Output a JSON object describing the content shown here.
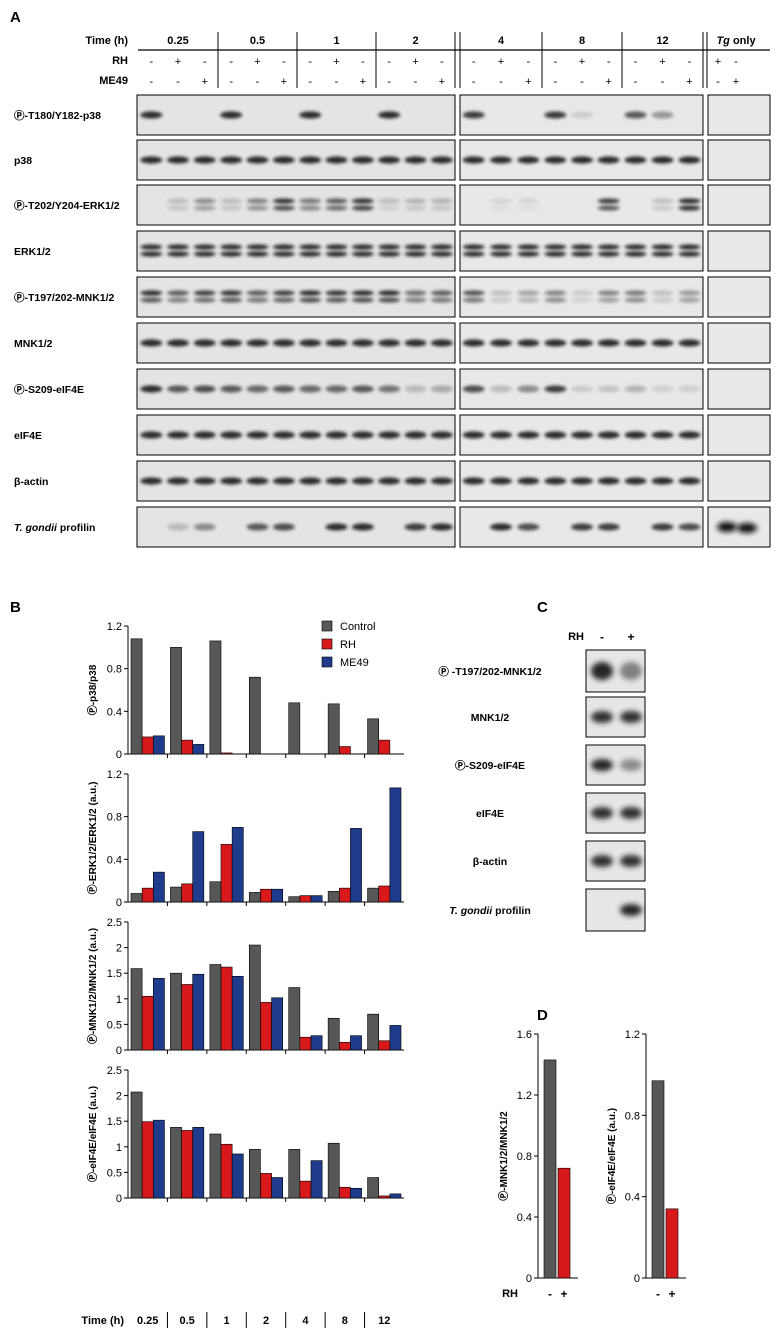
{
  "panel_labels": {
    "A": "A",
    "B": "B",
    "C": "C",
    "D": "D"
  },
  "panel_a": {
    "time_label": "Time (h)",
    "rh_label": "RH",
    "me49_label": "ME49",
    "tg_only_label": "Tg",
    "tg_only_suffix": " only",
    "times": [
      "0.25",
      "0.5",
      "1",
      "2",
      "4",
      "8",
      "12"
    ],
    "rh_signs": [
      "-",
      "+",
      "-"
    ],
    "me49_signs": [
      "-",
      "-",
      "+"
    ],
    "tg_rh": [
      "+",
      "-"
    ],
    "tg_me49": [
      "-",
      "+"
    ],
    "rows": [
      {
        "label": "Ⓟ-T180/Y182-p38"
      },
      {
        "label": "p38"
      },
      {
        "label": "Ⓟ-T202/Y204-ERK1/2"
      },
      {
        "label": "ERK1/2"
      },
      {
        "label": "Ⓟ-T197/202-MNK1/2"
      },
      {
        "label": "MNK1/2"
      },
      {
        "label": "Ⓟ-S209-eIF4E"
      },
      {
        "label": "eIF4E"
      },
      {
        "label": "β-actin"
      },
      {
        "label_italic": "T. gondii",
        "label_rest": " profilin"
      }
    ]
  },
  "panel_b": {
    "legend": [
      "Control",
      "RH",
      "ME49"
    ],
    "colors": {
      "Control": "#575757",
      "RH": "#d7191c",
      "ME49": "#1f3b8c"
    },
    "time_label": "Time (h)",
    "categories": [
      "0.25",
      "0.5",
      "1",
      "2",
      "4",
      "8",
      "12"
    ]
  },
  "panel_c": {
    "rh_label": "RH",
    "signs": [
      "-",
      "+"
    ],
    "rows": [
      {
        "label": "Ⓟ -T197/202-MNK1/2"
      },
      {
        "label": "MNK1/2"
      },
      {
        "label": "Ⓟ-S209-eIF4E"
      },
      {
        "label": "eIF4E"
      },
      {
        "label": "β-actin"
      },
      {
        "label_italic": "T. gondii",
        "label_rest": " profilin"
      }
    ]
  },
  "panel_d": {
    "rh_label": "RH",
    "signs": [
      "-",
      "+"
    ]
  },
  "chart_data": [
    {
      "type": "bar",
      "panel": "B",
      "ylabel": "Ⓟ-p38/p38",
      "categories": [
        "0.25",
        "0.5",
        "1",
        "2",
        "4",
        "8",
        "12"
      ],
      "ylim": [
        0,
        1.2
      ],
      "yticks": [
        "0",
        "0.4",
        "0.8",
        "1.2"
      ],
      "series": [
        {
          "name": "Control",
          "values": [
            1.08,
            1.0,
            1.06,
            0.72,
            0.48,
            0.47,
            0.33
          ]
        },
        {
          "name": "RH",
          "values": [
            0.16,
            0.13,
            0.01,
            0.0,
            0.0,
            0.07,
            0.13
          ]
        },
        {
          "name": "ME49",
          "values": [
            0.17,
            0.09,
            0.0,
            0.0,
            0.0,
            0.0,
            0.0
          ]
        }
      ]
    },
    {
      "type": "bar",
      "panel": "B",
      "ylabel": "Ⓟ-ERK1/2/ERK1/2 (a.u.)",
      "categories": [
        "0.25",
        "0.5",
        "1",
        "2",
        "4",
        "8",
        "12"
      ],
      "ylim": [
        0,
        1.2
      ],
      "yticks": [
        "0",
        "0.4",
        "0.8",
        "1.2"
      ],
      "series": [
        {
          "name": "Control",
          "values": [
            0.08,
            0.14,
            0.19,
            0.09,
            0.05,
            0.1,
            0.13
          ]
        },
        {
          "name": "RH",
          "values": [
            0.13,
            0.17,
            0.54,
            0.12,
            0.06,
            0.13,
            0.15
          ]
        },
        {
          "name": "ME49",
          "values": [
            0.28,
            0.66,
            0.7,
            0.12,
            0.06,
            0.69,
            1.07
          ]
        }
      ]
    },
    {
      "type": "bar",
      "panel": "B",
      "ylabel": "Ⓟ-MNK1/2/MNK1/2 (a.u.)",
      "categories": [
        "0.25",
        "0.5",
        "1",
        "2",
        "4",
        "8",
        "12"
      ],
      "ylim": [
        0,
        2.5
      ],
      "yticks": [
        "0",
        "0.5",
        "1",
        "1.5",
        "2",
        "2.5"
      ],
      "series": [
        {
          "name": "Control",
          "values": [
            1.59,
            1.5,
            1.67,
            2.05,
            1.22,
            0.62,
            0.7
          ]
        },
        {
          "name": "RH",
          "values": [
            1.05,
            1.28,
            1.62,
            0.93,
            0.25,
            0.15,
            0.18
          ]
        },
        {
          "name": "ME49",
          "values": [
            1.4,
            1.48,
            1.44,
            1.02,
            0.28,
            0.28,
            0.48
          ]
        }
      ]
    },
    {
      "type": "bar",
      "panel": "B",
      "ylabel": "Ⓟ-eIF4E/eIF4E (a.u.)",
      "categories": [
        "0.25",
        "0.5",
        "1",
        "2",
        "4",
        "8",
        "12"
      ],
      "ylim": [
        0,
        2.5
      ],
      "yticks": [
        "0",
        "0.5",
        "1",
        "1.5",
        "2",
        "2.5"
      ],
      "series": [
        {
          "name": "Control",
          "values": [
            2.07,
            1.38,
            1.25,
            0.95,
            0.95,
            1.07,
            0.4
          ]
        },
        {
          "name": "RH",
          "values": [
            1.49,
            1.32,
            1.05,
            0.48,
            0.33,
            0.21,
            0.04
          ]
        },
        {
          "name": "ME49",
          "values": [
            1.52,
            1.38,
            0.86,
            0.4,
            0.73,
            0.19,
            0.08
          ]
        }
      ]
    },
    {
      "type": "bar",
      "panel": "D",
      "ylabel": "Ⓟ-MNK1/2/MNK1/2",
      "categories": [
        "-",
        "+"
      ],
      "ylim": [
        0,
        1.6
      ],
      "yticks": [
        "0",
        "0.4",
        "0.8",
        "1.2",
        "1.6"
      ],
      "values": [
        1.43,
        0.72
      ]
    },
    {
      "type": "bar",
      "panel": "D",
      "ylabel": "Ⓟ-eIF4E/eIF4E (a.u.)",
      "categories": [
        "-",
        "+"
      ],
      "ylim": [
        0,
        1.2
      ],
      "yticks": [
        "0",
        "0.4",
        "0.8",
        "1.2"
      ],
      "values": [
        0.97,
        0.34
      ]
    }
  ]
}
